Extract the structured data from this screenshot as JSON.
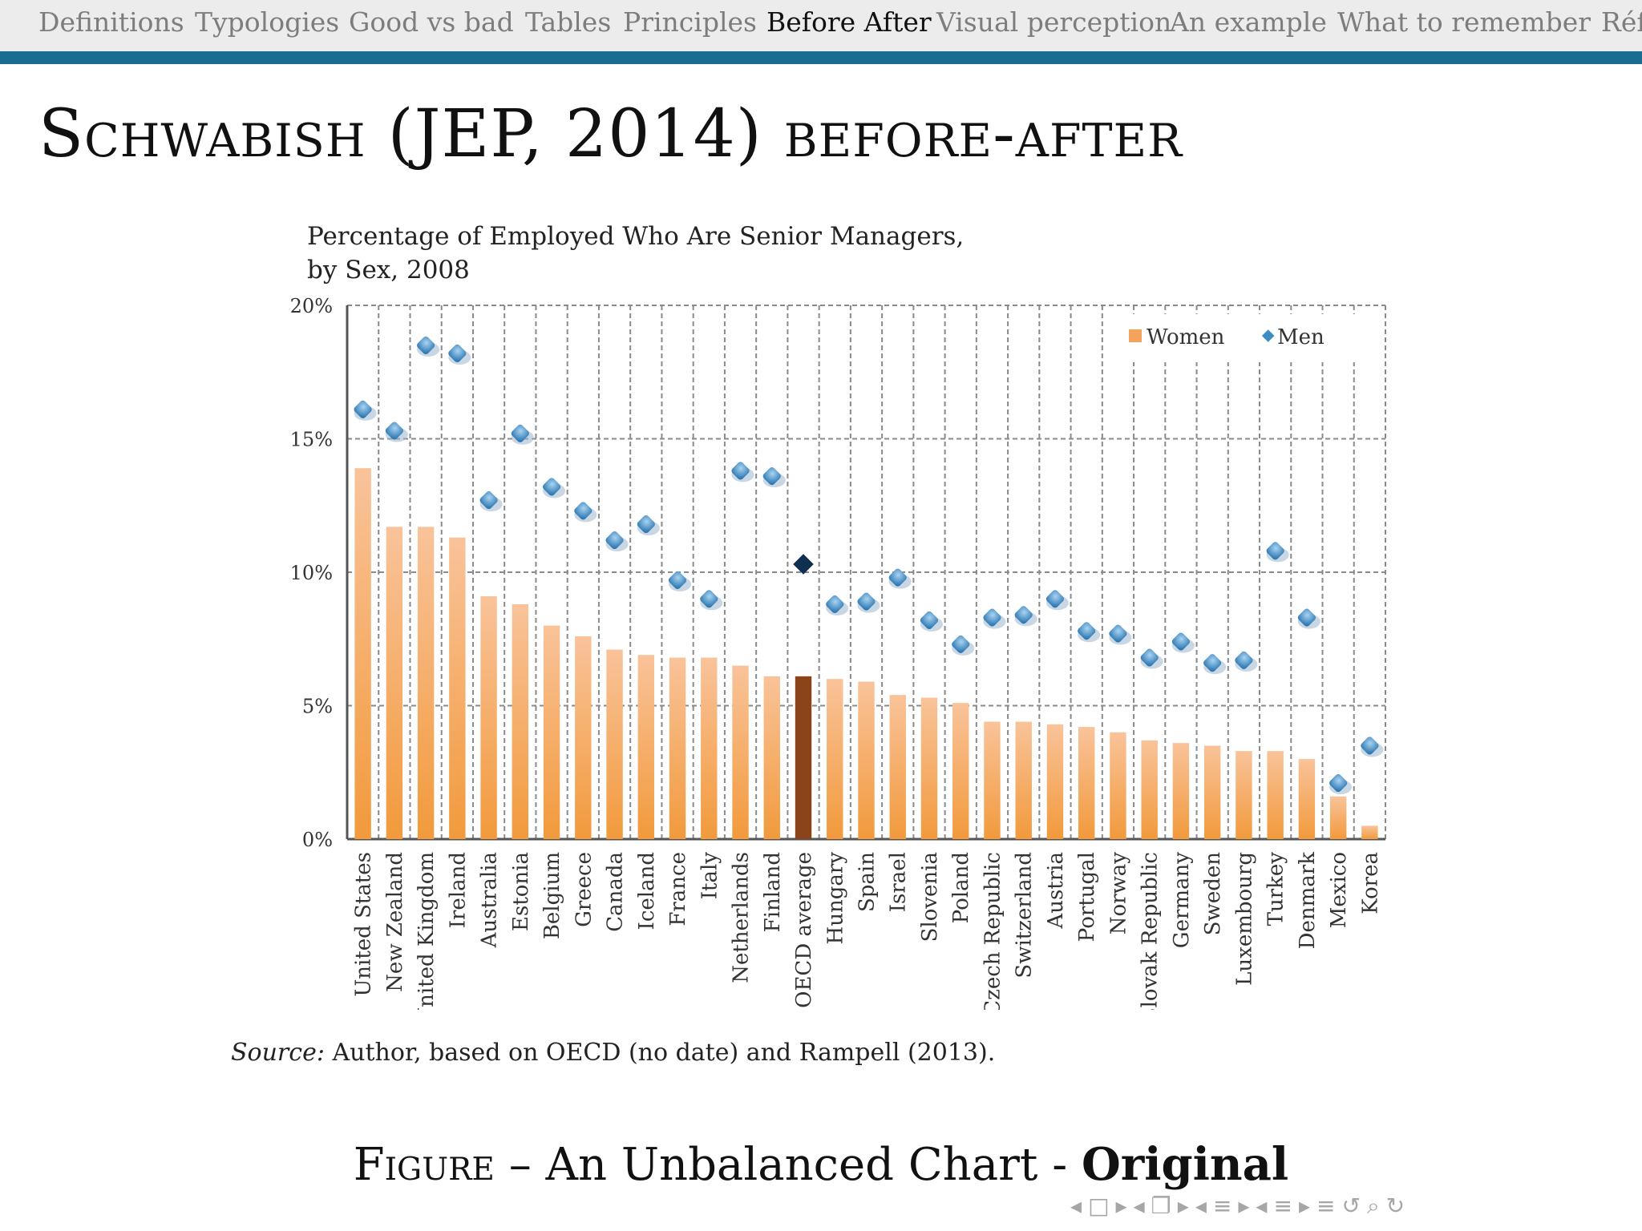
{
  "nav": {
    "items": [
      "Definitions",
      "Typologies",
      "Good vs bad",
      "Tables",
      "Principles",
      "Before After",
      "Visual perception",
      "An example",
      "What to remember",
      "Réf"
    ],
    "active_index": 5
  },
  "colors": {
    "nav_rule": "#1a6d91",
    "women_bar": "#f5a25a",
    "oecd_bar": "#8b4419",
    "men_marker": "#3f8cc4",
    "oecd_marker": "#0e2f4f"
  },
  "slide": {
    "title": "Schwabish (JEP, 2014) before-after"
  },
  "chart_data": {
    "type": "bar",
    "title_line1": "Percentage of Employed Who Are Senior Managers,",
    "title_line2": "by Sex, 2008",
    "categories": [
      "United States",
      "New Zealand",
      "United Kingdom",
      "Ireland",
      "Australia",
      "Estonia",
      "Belgium",
      "Greece",
      "Canada",
      "Iceland",
      "France",
      "Italy",
      "Netherlands",
      "Finland",
      "OECD average",
      "Hungary",
      "Spain",
      "Israel",
      "Slovenia",
      "Poland",
      "Czech Republic",
      "Switzerland",
      "Austria",
      "Portugal",
      "Norway",
      "Slovak Republic",
      "Germany",
      "Sweden",
      "Luxembourg",
      "Turkey",
      "Denmark",
      "Mexico",
      "Korea"
    ],
    "series": [
      {
        "name": "Women",
        "kind": "bar",
        "values": [
          13.9,
          11.7,
          11.7,
          11.3,
          9.1,
          8.8,
          8.0,
          7.6,
          7.1,
          6.9,
          6.8,
          6.8,
          6.5,
          6.1,
          6.1,
          6.0,
          5.9,
          5.4,
          5.3,
          5.1,
          4.4,
          4.4,
          4.3,
          4.2,
          4.0,
          3.7,
          3.6,
          3.5,
          3.3,
          3.3,
          3.0,
          1.6,
          0.5
        ]
      },
      {
        "name": "Men",
        "kind": "marker",
        "values": [
          16.1,
          15.3,
          18.5,
          18.2,
          12.7,
          15.2,
          13.2,
          12.3,
          11.2,
          11.8,
          9.7,
          9.0,
          13.8,
          13.6,
          10.3,
          8.8,
          8.9,
          9.8,
          8.2,
          7.3,
          8.3,
          8.4,
          9.0,
          7.8,
          7.7,
          6.8,
          7.4,
          6.6,
          6.7,
          10.8,
          8.3,
          2.1,
          3.5
        ]
      }
    ],
    "highlight_category": "OECD average",
    "ylim": [
      0,
      20
    ],
    "yticks": [
      "0%",
      "5%",
      "10%",
      "15%",
      "20%"
    ],
    "grid": true,
    "legend_placement": "top-right"
  },
  "source": {
    "label": "Source:",
    "text": " Author, based on OECD (no date) and Rampell (2013)."
  },
  "caption": {
    "prefix": "Figure",
    "dash": " – An Unbalanced Chart - ",
    "bold": "Original"
  },
  "beamer_nav": {
    "icons": [
      "◂",
      "□",
      "▸",
      "◂",
      "❐",
      "▸",
      "◂",
      "≡",
      "▸",
      "◂",
      "≡",
      "▸",
      "≡",
      "↺",
      "⌕",
      "↻"
    ]
  }
}
